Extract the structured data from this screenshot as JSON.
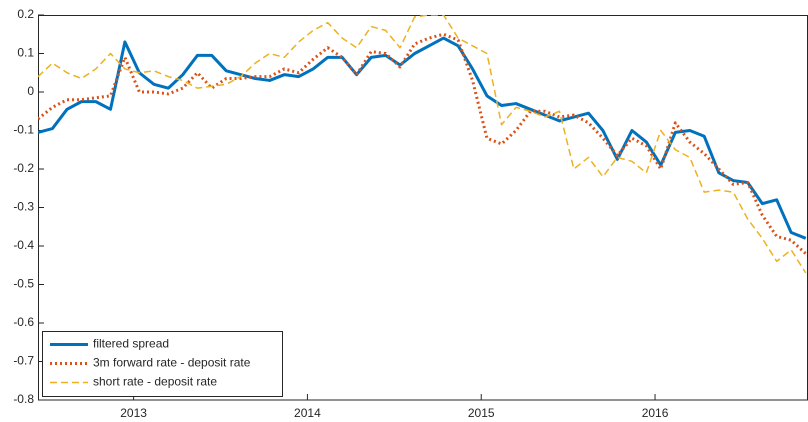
{
  "chart_data": {
    "type": "line",
    "x": [
      2012.45,
      2012.533,
      2012.617,
      2012.7,
      2012.783,
      2012.867,
      2012.95,
      2013.033,
      2013.117,
      2013.2,
      2013.283,
      2013.367,
      2013.45,
      2013.533,
      2013.617,
      2013.7,
      2013.783,
      2013.867,
      2013.95,
      2014.033,
      2014.117,
      2014.2,
      2014.283,
      2014.367,
      2014.45,
      2014.533,
      2014.617,
      2014.7,
      2014.783,
      2014.867,
      2014.95,
      2015.033,
      2015.117,
      2015.2,
      2015.283,
      2015.367,
      2015.45,
      2015.533,
      2015.617,
      2015.7,
      2015.783,
      2015.867,
      2015.95,
      2016.033,
      2016.117,
      2016.2,
      2016.283,
      2016.367,
      2016.45,
      2016.533,
      2016.617,
      2016.7,
      2016.783,
      2016.867
    ],
    "series": [
      {
        "name": "filtered spread",
        "color": "#0072bd",
        "style": "solid",
        "values": [
          -0.105,
          -0.095,
          -0.045,
          -0.025,
          -0.025,
          -0.045,
          0.13,
          0.05,
          0.02,
          0.01,
          0.045,
          0.095,
          0.095,
          0.055,
          0.045,
          0.035,
          0.03,
          0.045,
          0.04,
          0.06,
          0.09,
          0.09,
          0.045,
          0.09,
          0.095,
          0.07,
          0.1,
          0.12,
          0.14,
          0.12,
          0.06,
          -0.01,
          -0.035,
          -0.03,
          -0.045,
          -0.06,
          -0.075,
          -0.065,
          -0.055,
          -0.1,
          -0.175,
          -0.1,
          -0.13,
          -0.19,
          -0.105,
          -0.1,
          -0.115,
          -0.21,
          -0.23,
          -0.235,
          -0.29,
          -0.28,
          -0.365,
          -0.38
        ]
      },
      {
        "name": "3m forward rate - deposit rate",
        "color": "#d95319",
        "style": "dotted",
        "values": [
          -0.07,
          -0.04,
          -0.02,
          -0.02,
          -0.015,
          -0.01,
          0.09,
          0.0,
          0.0,
          -0.005,
          0.01,
          0.05,
          0.01,
          0.035,
          0.035,
          0.04,
          0.04,
          0.06,
          0.05,
          0.085,
          0.115,
          0.09,
          0.045,
          0.105,
          0.1,
          0.065,
          0.125,
          0.14,
          0.15,
          0.135,
          0.03,
          -0.12,
          -0.135,
          -0.1,
          -0.05,
          -0.05,
          -0.065,
          -0.06,
          -0.08,
          -0.12,
          -0.165,
          -0.12,
          -0.14,
          -0.2,
          -0.08,
          -0.13,
          -0.16,
          -0.2,
          -0.24,
          -0.235,
          -0.32,
          -0.375,
          -0.385,
          -0.42
        ]
      },
      {
        "name": "short rate - deposit rate",
        "color": "#edb120",
        "style": "dashed",
        "values": [
          0.04,
          0.075,
          0.05,
          0.035,
          0.06,
          0.1,
          0.06,
          0.05,
          0.055,
          0.04,
          0.03,
          0.01,
          0.015,
          0.02,
          0.04,
          0.075,
          0.1,
          0.09,
          0.13,
          0.16,
          0.18,
          0.14,
          0.115,
          0.17,
          0.16,
          0.115,
          0.195,
          0.2,
          0.2,
          0.14,
          0.12,
          0.1,
          -0.085,
          -0.04,
          -0.05,
          -0.065,
          -0.05,
          -0.2,
          -0.17,
          -0.22,
          -0.17,
          -0.18,
          -0.21,
          -0.1,
          -0.15,
          -0.17,
          -0.26,
          -0.255,
          -0.26,
          -0.33,
          -0.38,
          -0.44,
          -0.41,
          -0.47
        ]
      }
    ],
    "xlim": [
      2012.45,
      2016.88
    ],
    "xticks": [
      2013,
      2014,
      2015,
      2016
    ],
    "ylim": [
      -0.8,
      0.2
    ],
    "yticks": [
      -0.8,
      -0.7,
      -0.6,
      -0.5,
      -0.4,
      -0.3,
      -0.2,
      -0.1,
      0,
      0.1,
      0.2
    ],
    "grid": false,
    "legend": "lower left"
  }
}
